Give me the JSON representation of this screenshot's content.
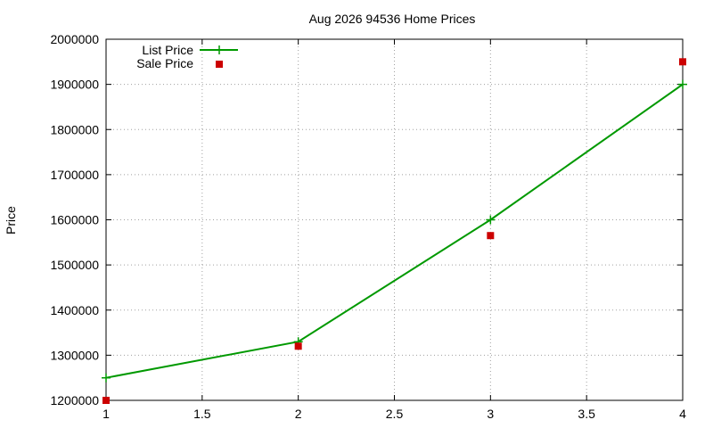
{
  "chart_data": {
    "type": "line",
    "title": "Aug 2026 94536 Home Prices",
    "xlabel": "",
    "ylabel": "Price",
    "x": [
      1,
      2,
      3,
      4
    ],
    "xlim": [
      1,
      4
    ],
    "ylim": [
      1200000,
      2000000
    ],
    "x_ticks": [
      "1",
      "1.5",
      "2",
      "2.5",
      "3",
      "3.5",
      "4"
    ],
    "y_ticks": [
      "1200000",
      "1300000",
      "1400000",
      "1500000",
      "1600000",
      "1700000",
      "1800000",
      "1900000",
      "2000000"
    ],
    "grid": true,
    "legend_position": "top-left",
    "series": [
      {
        "name": "List Price",
        "style": "line with cross markers",
        "color": "#009900",
        "values": [
          1250000,
          1330000,
          1600000,
          1900000
        ]
      },
      {
        "name": "Sale Price",
        "style": "square markers",
        "color": "#cc0000",
        "values": [
          1200000,
          1320000,
          1565000,
          1950000
        ]
      }
    ]
  }
}
